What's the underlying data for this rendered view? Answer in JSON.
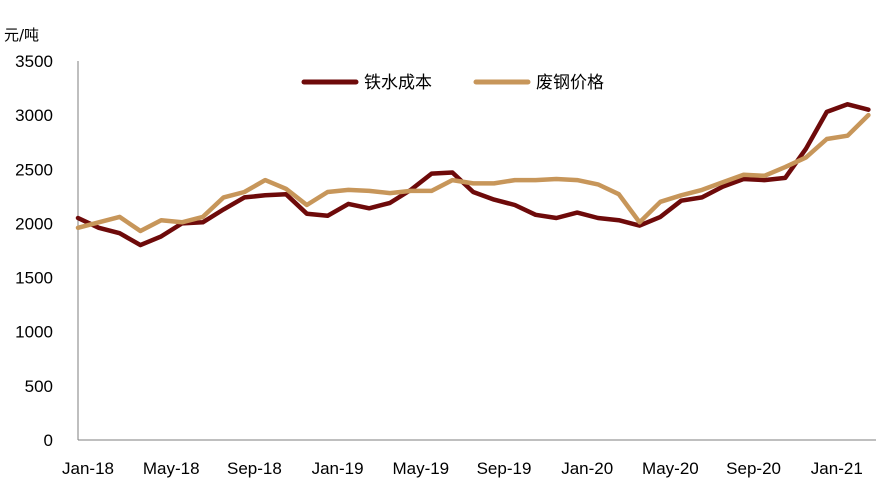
{
  "chart_data": {
    "type": "line",
    "y_unit_label": "元/吨",
    "ylim": [
      0,
      3500
    ],
    "y_ticks": [
      "0",
      "500",
      "1000",
      "1500",
      "2000",
      "2500",
      "3000",
      "3500"
    ],
    "x_tick_labels": [
      "Jan-18",
      "May-18",
      "Sep-18",
      "Jan-19",
      "May-19",
      "Sep-19",
      "Jan-20",
      "May-20",
      "Sep-20",
      "Jan-21"
    ],
    "x": [
      "2018-01",
      "2018-02",
      "2018-03",
      "2018-04",
      "2018-05",
      "2018-06",
      "2018-07",
      "2018-08",
      "2018-09",
      "2018-10",
      "2018-11",
      "2018-12",
      "2019-01",
      "2019-02",
      "2019-03",
      "2019-04",
      "2019-05",
      "2019-06",
      "2019-07",
      "2019-08",
      "2019-09",
      "2019-10",
      "2019-11",
      "2019-12",
      "2020-01",
      "2020-02",
      "2020-03",
      "2020-04",
      "2020-05",
      "2020-06",
      "2020-07",
      "2020-08",
      "2020-09",
      "2020-10",
      "2020-11",
      "2020-12",
      "2021-01",
      "2021-02",
      "2021-03"
    ],
    "grid": false,
    "legend_position": "top-center",
    "series": [
      {
        "name": "铁水成本",
        "color": "#6e0a0a",
        "values": [
          2050,
          1960,
          1910,
          1800,
          1880,
          2000,
          2010,
          2130,
          2240,
          2260,
          2270,
          2090,
          2070,
          2180,
          2140,
          2190,
          2310,
          2460,
          2470,
          2290,
          2220,
          2170,
          2080,
          2050,
          2100,
          2050,
          2030,
          1980,
          2060,
          2210,
          2240,
          2340,
          2410,
          2400,
          2420,
          2690,
          3030,
          3100,
          3050
        ]
      },
      {
        "name": "废钢价格",
        "color": "#c7965a",
        "values": [
          1960,
          2010,
          2060,
          1930,
          2030,
          2010,
          2060,
          2240,
          2290,
          2400,
          2320,
          2170,
          2290,
          2310,
          2300,
          2280,
          2300,
          2300,
          2400,
          2370,
          2370,
          2400,
          2400,
          2410,
          2400,
          2360,
          2270,
          2010,
          2200,
          2260,
          2310,
          2380,
          2450,
          2440,
          2520,
          2610,
          2780,
          2810,
          3000
        ]
      }
    ]
  }
}
